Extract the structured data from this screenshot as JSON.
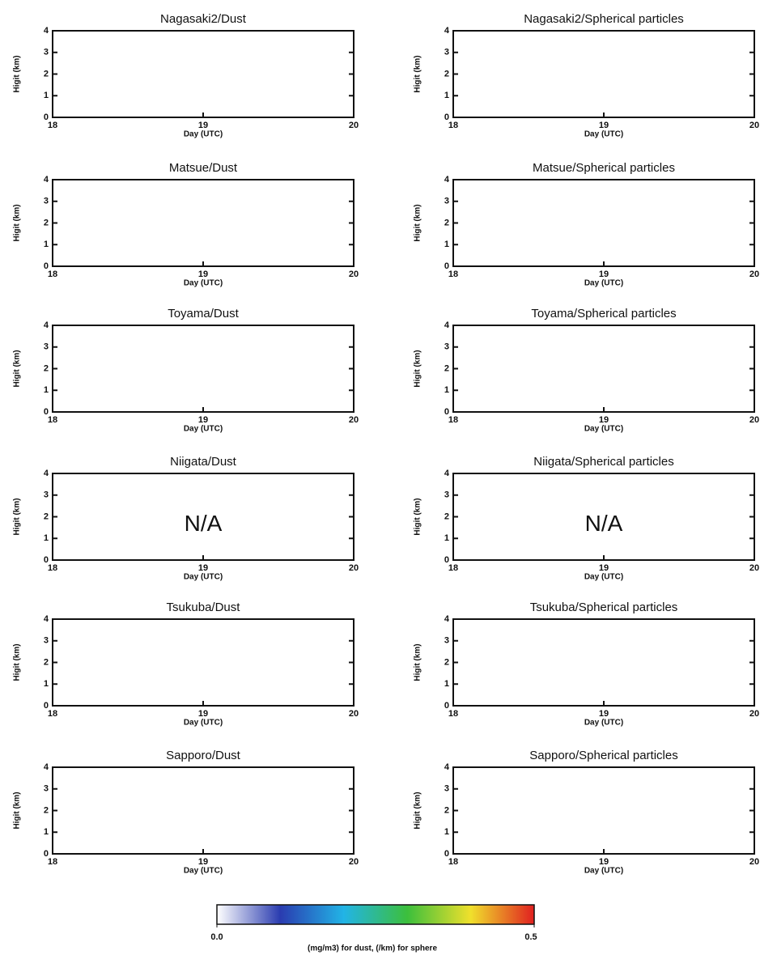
{
  "chart_data": [
    {
      "type": "heatmap",
      "title": "Nagasaki2/Dust",
      "xlabel": "Day (UTC)",
      "ylabel": "Higit (km)",
      "xlim": [
        18,
        20
      ],
      "xticks": [
        18,
        19,
        20
      ],
      "ylim": [
        0,
        4
      ],
      "yticks": [
        0,
        1,
        2,
        3,
        4
      ]
    },
    {
      "type": "heatmap",
      "title": "Nagasaki2/Spherical particles",
      "xlabel": "Day (UTC)",
      "ylabel": "Higit (km)",
      "xlim": [
        18,
        20
      ],
      "xticks": [
        18,
        19,
        20
      ],
      "ylim": [
        0,
        4
      ],
      "yticks": [
        0,
        1,
        2,
        3,
        4
      ]
    },
    {
      "type": "heatmap",
      "title": "Matsue/Dust",
      "xlabel": "Day (UTC)",
      "ylabel": "Higit (km)",
      "xlim": [
        18,
        20
      ],
      "xticks": [
        18,
        19,
        20
      ],
      "ylim": [
        0,
        4
      ],
      "yticks": [
        0,
        1,
        2,
        3,
        4
      ]
    },
    {
      "type": "heatmap",
      "title": "Matsue/Spherical particles",
      "xlabel": "Day (UTC)",
      "ylabel": "Higit (km)",
      "xlim": [
        18,
        20
      ],
      "xticks": [
        18,
        19,
        20
      ],
      "ylim": [
        0,
        4
      ],
      "yticks": [
        0,
        1,
        2,
        3,
        4
      ]
    },
    {
      "type": "heatmap",
      "title": "Toyama/Dust",
      "xlabel": "Day (UTC)",
      "ylabel": "Higit (km)",
      "xlim": [
        18,
        20
      ],
      "xticks": [
        18,
        19,
        20
      ],
      "ylim": [
        0,
        4
      ],
      "yticks": [
        0,
        1,
        2,
        3,
        4
      ]
    },
    {
      "type": "heatmap",
      "title": "Toyama/Spherical particles",
      "xlabel": "Day (UTC)",
      "ylabel": "Higit (km)",
      "xlim": [
        18,
        20
      ],
      "xticks": [
        18,
        19,
        20
      ],
      "ylim": [
        0,
        4
      ],
      "yticks": [
        0,
        1,
        2,
        3,
        4
      ]
    },
    {
      "type": "heatmap",
      "title": "Niigata/Dust",
      "xlabel": "Day (UTC)",
      "ylabel": "Higit (km)",
      "xlim": [
        18,
        20
      ],
      "xticks": [
        18,
        19,
        20
      ],
      "ylim": [
        0,
        4
      ],
      "yticks": [
        0,
        1,
        2,
        3,
        4
      ],
      "annotation": "N/A"
    },
    {
      "type": "heatmap",
      "title": "Niigata/Spherical particles",
      "xlabel": "Day (UTC)",
      "ylabel": "Higit (km)",
      "xlim": [
        18,
        20
      ],
      "xticks": [
        18,
        19,
        20
      ],
      "ylim": [
        0,
        4
      ],
      "yticks": [
        0,
        1,
        2,
        3,
        4
      ],
      "annotation": "N/A"
    },
    {
      "type": "heatmap",
      "title": "Tsukuba/Dust",
      "xlabel": "Day (UTC)",
      "ylabel": "Higit (km)",
      "xlim": [
        18,
        20
      ],
      "xticks": [
        18,
        19,
        20
      ],
      "ylim": [
        0,
        4
      ],
      "yticks": [
        0,
        1,
        2,
        3,
        4
      ]
    },
    {
      "type": "heatmap",
      "title": "Tsukuba/Spherical particles",
      "xlabel": "Day (UTC)",
      "ylabel": "Higit (km)",
      "xlim": [
        18,
        20
      ],
      "xticks": [
        18,
        19,
        20
      ],
      "ylim": [
        0,
        4
      ],
      "yticks": [
        0,
        1,
        2,
        3,
        4
      ]
    },
    {
      "type": "heatmap",
      "title": "Sapporo/Dust",
      "xlabel": "Day (UTC)",
      "ylabel": "Higit (km)",
      "xlim": [
        18,
        20
      ],
      "xticks": [
        18,
        19,
        20
      ],
      "ylim": [
        0,
        4
      ],
      "yticks": [
        0,
        1,
        2,
        3,
        4
      ]
    },
    {
      "type": "heatmap",
      "title": "Sapporo/Spherical particles",
      "xlabel": "Day (UTC)",
      "ylabel": "Higit (km)",
      "xlim": [
        18,
        20
      ],
      "xticks": [
        18,
        19,
        20
      ],
      "ylim": [
        0,
        4
      ],
      "yticks": [
        0,
        1,
        2,
        3,
        4
      ]
    },
    {
      "type": "colorbar",
      "xlabel": "(mg/m3) for dust, (/km) for sphere",
      "xlim": [
        0,
        0.5
      ],
      "xticks": [
        {
          "value": 0,
          "label": "0.0"
        },
        0.5
      ],
      "colors": [
        "#ffffff",
        "#2a3cb0",
        "#22b4e6",
        "#3cbf3c",
        "#f0e02c",
        "#e02020"
      ]
    }
  ]
}
